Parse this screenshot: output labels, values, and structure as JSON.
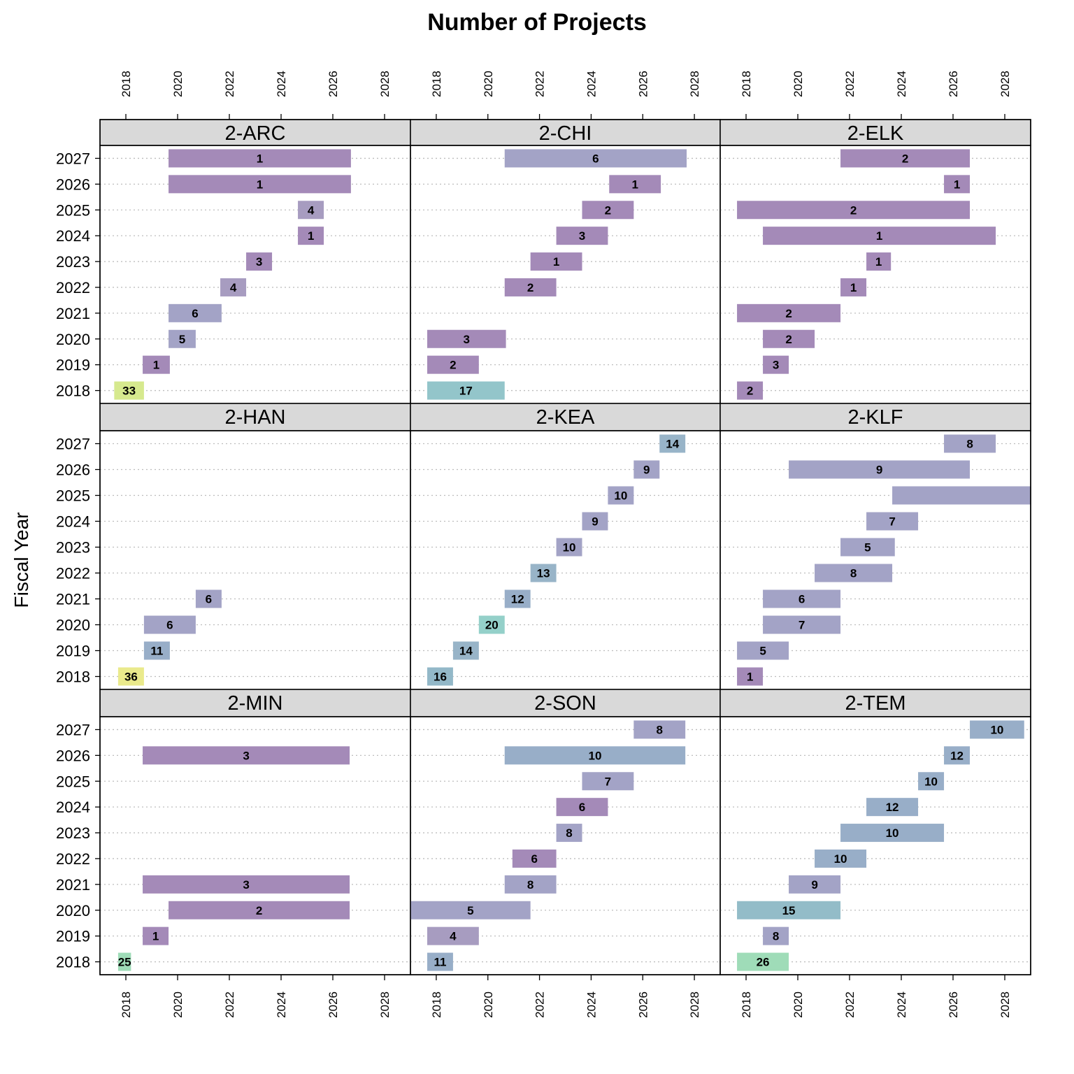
{
  "chart_data": {
    "type": "bar",
    "title": "Number of Projects",
    "ylabel": "Fiscal Year",
    "xlabel": "",
    "xlim": [
      2017,
      2029
    ],
    "x_ticks": [
      "2018",
      "2020",
      "2022",
      "2024",
      "2026",
      "2028"
    ],
    "y_categories": [
      "2018",
      "2019",
      "2020",
      "2021",
      "2022",
      "2023",
      "2024",
      "2025",
      "2026",
      "2027"
    ],
    "grid": "dotted horizontal lines at each fiscal year",
    "fill_colors": {
      "low": "#a48ab8",
      "mid": "#a3a3c6",
      "blue": "#98aec8",
      "teal": "#93c5ca",
      "tealgreen": "#94d0c9",
      "green": "#9fdcb8",
      "lime": "#d6e98e",
      "yellow": "#eaea8c"
    },
    "panels": [
      {
        "name": "2-ARC",
        "bars": [
          {
            "year": "2018",
            "start": 2017.55,
            "end": 2018.7,
            "label": "33",
            "fill": "#d6e98e"
          },
          {
            "year": "2019",
            "start": 2018.65,
            "end": 2019.7,
            "label": "1",
            "fill": "#a48ab8"
          },
          {
            "year": "2020",
            "start": 2019.65,
            "end": 2020.7,
            "label": "5",
            "fill": "#a3a3c6"
          },
          {
            "year": "2021",
            "start": 2019.65,
            "end": 2021.7,
            "label": "6",
            "fill": "#a3a3c6"
          },
          {
            "year": "2022",
            "start": 2021.65,
            "end": 2022.65,
            "label": "4",
            "fill": "#a79cc0"
          },
          {
            "year": "2023",
            "start": 2022.65,
            "end": 2023.65,
            "label": "3",
            "fill": "#a48ab8"
          },
          {
            "year": "2024",
            "start": 2024.65,
            "end": 2025.65,
            "label": "1",
            "fill": "#a48ab8"
          },
          {
            "year": "2025",
            "start": 2024.65,
            "end": 2025.65,
            "label": "4",
            "fill": "#a79cc0"
          },
          {
            "year": "2026",
            "start": 2019.65,
            "end": 2026.7,
            "label": "1",
            "fill": "#a48ab8"
          },
          {
            "year": "2027",
            "start": 2019.65,
            "end": 2026.7,
            "label": "1",
            "fill": "#a48ab8"
          }
        ]
      },
      {
        "name": "2-CHI",
        "bars": [
          {
            "year": "2018",
            "start": 2017.65,
            "end": 2020.65,
            "label": "17",
            "fill": "#93c5ca"
          },
          {
            "year": "2019",
            "start": 2017.65,
            "end": 2019.65,
            "label": "2",
            "fill": "#a48ab8"
          },
          {
            "year": "2020",
            "start": 2017.65,
            "end": 2020.7,
            "label": "3",
            "fill": "#a48ab8"
          },
          {
            "year": "2022",
            "start": 2020.65,
            "end": 2022.65,
            "label": "2",
            "fill": "#a48ab8"
          },
          {
            "year": "2023",
            "start": 2021.65,
            "end": 2023.65,
            "label": "1",
            "fill": "#a48ab8"
          },
          {
            "year": "2024",
            "start": 2022.65,
            "end": 2024.65,
            "label": "3",
            "fill": "#a48ab8"
          },
          {
            "year": "2025",
            "start": 2023.65,
            "end": 2025.65,
            "label": "2",
            "fill": "#a48ab8"
          },
          {
            "year": "2026",
            "start": 2024.7,
            "end": 2026.7,
            "label": "1",
            "fill": "#a48ab8"
          },
          {
            "year": "2027",
            "start": 2020.65,
            "end": 2027.7,
            "label": "6",
            "fill": "#a3a3c6"
          }
        ]
      },
      {
        "name": "2-ELK",
        "bars": [
          {
            "year": "2018",
            "start": 2017.65,
            "end": 2018.65,
            "label": "2",
            "fill": "#a48ab8"
          },
          {
            "year": "2019",
            "start": 2018.65,
            "end": 2019.65,
            "label": "3",
            "fill": "#a48ab8"
          },
          {
            "year": "2020",
            "start": 2018.65,
            "end": 2020.65,
            "label": "2",
            "fill": "#a48ab8"
          },
          {
            "year": "2021",
            "start": 2017.65,
            "end": 2021.65,
            "label": "2",
            "fill": "#a48ab8"
          },
          {
            "year": "2022",
            "start": 2021.65,
            "end": 2022.65,
            "label": "1",
            "fill": "#a48ab8"
          },
          {
            "year": "2023",
            "start": 2022.65,
            "end": 2023.6,
            "label": "1",
            "fill": "#a48ab8"
          },
          {
            "year": "2024",
            "start": 2018.65,
            "end": 2027.65,
            "label": "1",
            "fill": "#a48ab8"
          },
          {
            "year": "2025",
            "start": 2017.65,
            "end": 2026.65,
            "label": "2",
            "fill": "#a48ab8"
          },
          {
            "year": "2026",
            "start": 2025.65,
            "end": 2026.65,
            "label": "1",
            "fill": "#a48ab8"
          },
          {
            "year": "2027",
            "start": 2021.65,
            "end": 2026.65,
            "label": "2",
            "fill": "#a48ab8"
          }
        ]
      },
      {
        "name": "2-HAN",
        "bars": [
          {
            "year": "2018",
            "start": 2017.7,
            "end": 2018.7,
            "label": "36",
            "fill": "#eaea8c"
          },
          {
            "year": "2019",
            "start": 2018.7,
            "end": 2019.7,
            "label": "11",
            "fill": "#98aec8"
          },
          {
            "year": "2020",
            "start": 2018.7,
            "end": 2020.7,
            "label": "6",
            "fill": "#a3a3c6"
          },
          {
            "year": "2021",
            "start": 2020.7,
            "end": 2021.7,
            "label": "6",
            "fill": "#a3a3c6"
          }
        ]
      },
      {
        "name": "2-KEA",
        "bars": [
          {
            "year": "2018",
            "start": 2017.65,
            "end": 2018.65,
            "label": "16",
            "fill": "#93b8c8"
          },
          {
            "year": "2019",
            "start": 2018.65,
            "end": 2019.65,
            "label": "14",
            "fill": "#98b4c8"
          },
          {
            "year": "2020",
            "start": 2019.65,
            "end": 2020.65,
            "label": "20",
            "fill": "#94d0c9"
          },
          {
            "year": "2021",
            "start": 2020.65,
            "end": 2021.65,
            "label": "12",
            "fill": "#98aec8"
          },
          {
            "year": "2022",
            "start": 2021.65,
            "end": 2022.65,
            "label": "13",
            "fill": "#98b4c8"
          },
          {
            "year": "2023",
            "start": 2022.65,
            "end": 2023.65,
            "label": "10",
            "fill": "#a3a3c6"
          },
          {
            "year": "2024",
            "start": 2023.65,
            "end": 2024.65,
            "label": "9",
            "fill": "#a3a3c6"
          },
          {
            "year": "2025",
            "start": 2024.65,
            "end": 2025.65,
            "label": "10",
            "fill": "#a3a3c6"
          },
          {
            "year": "2026",
            "start": 2025.65,
            "end": 2026.65,
            "label": "9",
            "fill": "#a3a3c6"
          },
          {
            "year": "2027",
            "start": 2026.65,
            "end": 2027.65,
            "label": "14",
            "fill": "#98b4c8"
          }
        ]
      },
      {
        "name": "2-KLF",
        "bars": [
          {
            "year": "2018",
            "start": 2017.65,
            "end": 2018.65,
            "label": "1",
            "fill": "#a48ab8"
          },
          {
            "year": "2019",
            "start": 2017.65,
            "end": 2019.65,
            "label": "5",
            "fill": "#a3a3c6"
          },
          {
            "year": "2020",
            "start": 2018.65,
            "end": 2021.65,
            "label": "7",
            "fill": "#a3a3c6"
          },
          {
            "year": "2021",
            "start": 2018.65,
            "end": 2021.65,
            "label": "6",
            "fill": "#a3a3c6"
          },
          {
            "year": "2022",
            "start": 2020.65,
            "end": 2023.65,
            "label": "8",
            "fill": "#a3a3c6"
          },
          {
            "year": "2023",
            "start": 2021.65,
            "end": 2023.75,
            "label": "5",
            "fill": "#a3a3c6"
          },
          {
            "year": "2024",
            "start": 2022.65,
            "end": 2024.65,
            "label": "7",
            "fill": "#a3a3c6"
          },
          {
            "year": "2025",
            "start": 2023.65,
            "end": 2029.0,
            "label": "",
            "fill": "#a3a3c6"
          },
          {
            "year": "2026",
            "start": 2019.65,
            "end": 2026.65,
            "label": "9",
            "fill": "#a3a3c6"
          },
          {
            "year": "2027",
            "start": 2025.65,
            "end": 2027.65,
            "label": "8",
            "fill": "#a3a3c6"
          }
        ]
      },
      {
        "name": "2-MIN",
        "bars": [
          {
            "year": "2018",
            "start": 2017.7,
            "end": 2018.2,
            "label": "25",
            "fill": "#9fdcb8"
          },
          {
            "year": "2019",
            "start": 2018.65,
            "end": 2019.65,
            "label": "1",
            "fill": "#a48ab8"
          },
          {
            "year": "2020",
            "start": 2019.65,
            "end": 2026.65,
            "label": "2",
            "fill": "#a48ab8"
          },
          {
            "year": "2021",
            "start": 2018.65,
            "end": 2026.65,
            "label": "3",
            "fill": "#a48ab8"
          },
          {
            "year": "2026",
            "start": 2018.65,
            "end": 2026.65,
            "label": "3",
            "fill": "#a48ab8"
          }
        ]
      },
      {
        "name": "2-SON",
        "bars": [
          {
            "year": "2018",
            "start": 2017.65,
            "end": 2018.65,
            "label": "11",
            "fill": "#98aec8"
          },
          {
            "year": "2019",
            "start": 2017.65,
            "end": 2019.65,
            "label": "4",
            "fill": "#a79cc0"
          },
          {
            "year": "2020",
            "start": 2017.0,
            "end": 2021.65,
            "label": "5",
            "fill": "#a3a3c6"
          },
          {
            "year": "2021",
            "start": 2020.65,
            "end": 2022.65,
            "label": "8",
            "fill": "#a3a3c6"
          },
          {
            "year": "2022",
            "start": 2020.95,
            "end": 2022.65,
            "label": "6",
            "fill": "#a48ab8"
          },
          {
            "year": "2023",
            "start": 2022.65,
            "end": 2023.65,
            "label": "8",
            "fill": "#a3a3c6"
          },
          {
            "year": "2024",
            "start": 2022.65,
            "end": 2024.65,
            "label": "6",
            "fill": "#a48ab8"
          },
          {
            "year": "2025",
            "start": 2023.65,
            "end": 2025.65,
            "label": "7",
            "fill": "#a3a3c6"
          },
          {
            "year": "2026",
            "start": 2020.65,
            "end": 2027.65,
            "label": "10",
            "fill": "#98aec8"
          },
          {
            "year": "2027",
            "start": 2025.65,
            "end": 2027.65,
            "label": "8",
            "fill": "#a3a3c6"
          }
        ]
      },
      {
        "name": "2-TEM",
        "bars": [
          {
            "year": "2018",
            "start": 2017.65,
            "end": 2019.65,
            "label": "26",
            "fill": "#9fdcb8"
          },
          {
            "year": "2019",
            "start": 2018.65,
            "end": 2019.65,
            "label": "8",
            "fill": "#a3a3c6"
          },
          {
            "year": "2020",
            "start": 2017.65,
            "end": 2021.65,
            "label": "15",
            "fill": "#93bcc8"
          },
          {
            "year": "2021",
            "start": 2019.65,
            "end": 2021.65,
            "label": "9",
            "fill": "#a3a3c6"
          },
          {
            "year": "2022",
            "start": 2020.65,
            "end": 2022.65,
            "label": "10",
            "fill": "#98aec8"
          },
          {
            "year": "2023",
            "start": 2021.65,
            "end": 2025.65,
            "label": "10",
            "fill": "#98aec8"
          },
          {
            "year": "2024",
            "start": 2022.65,
            "end": 2024.65,
            "label": "12",
            "fill": "#98aec8"
          },
          {
            "year": "2025",
            "start": 2024.65,
            "end": 2025.65,
            "label": "10",
            "fill": "#98aec8"
          },
          {
            "year": "2026",
            "start": 2025.65,
            "end": 2026.65,
            "label": "12",
            "fill": "#98aec8"
          },
          {
            "year": "2027",
            "start": 2026.65,
            "end": 2028.75,
            "label": "10",
            "fill": "#98aec8"
          }
        ]
      }
    ]
  }
}
